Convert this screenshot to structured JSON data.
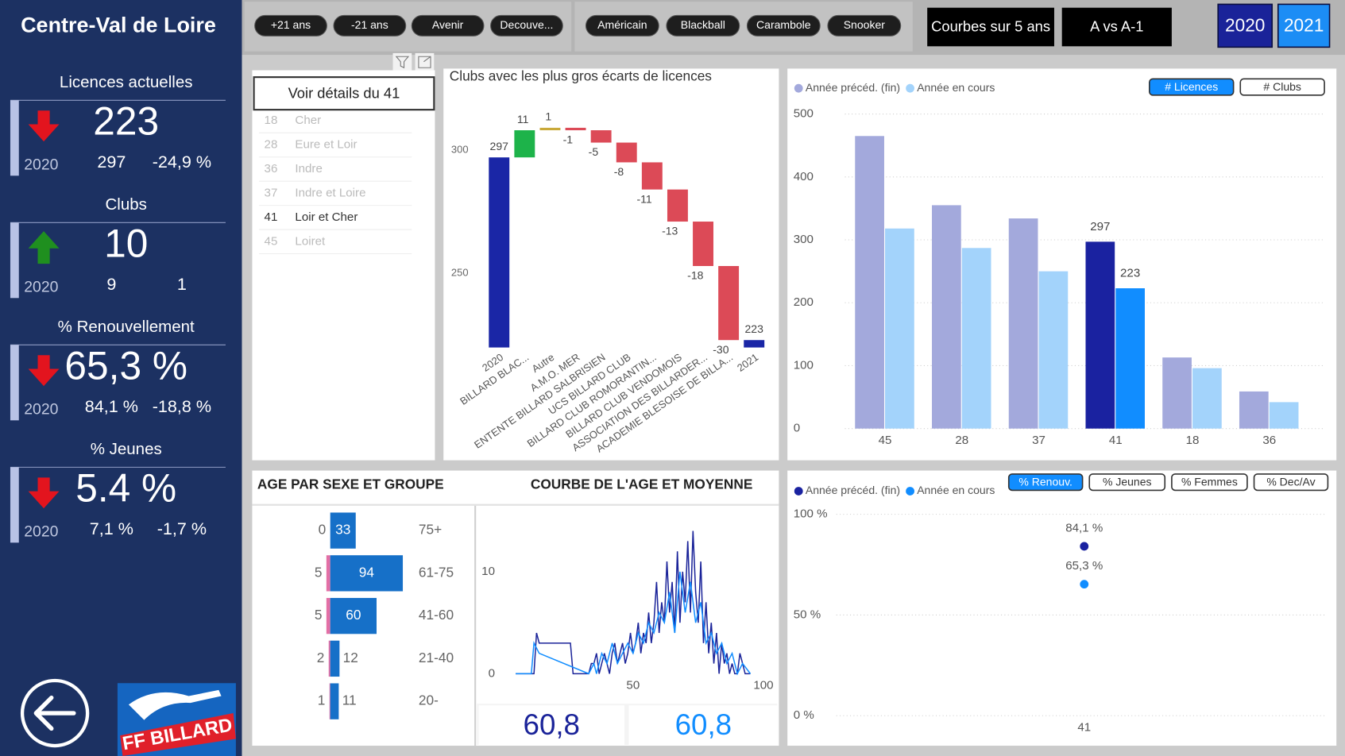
{
  "sidebar": {
    "title": "Centre-Val de Loire",
    "kpis": [
      {
        "title": "Licences actuelles",
        "value": "223",
        "trend": "down",
        "year": "2020",
        "previous": "297",
        "change": "-24,9 %"
      },
      {
        "title": "Clubs",
        "value": "10",
        "trend": "up",
        "year": "2020",
        "previous": "9",
        "change": "1"
      },
      {
        "title": "% Renouvellement",
        "value": "65,3 %",
        "trend": "down",
        "year": "2020",
        "previous": "84,1 %",
        "change": "-18,8 %"
      },
      {
        "title": "% Jeunes",
        "value": "5.4 %",
        "trend": "down",
        "year": "2020",
        "previous": "7,1 %",
        "change": "-1,7 %"
      }
    ],
    "logo": "FF BILLARD"
  },
  "filters": {
    "age_groups": [
      "+21 ans",
      "-21 ans",
      "Avenir",
      "Decouve..."
    ],
    "disciplines": [
      "Américain",
      "Blackball",
      "Carambole",
      "Snooker"
    ],
    "views": [
      "Courbes sur 5 ans",
      "A vs A-1"
    ],
    "years": [
      "2020",
      "2021"
    ]
  },
  "slicer": {
    "title": "Voir détails du 41",
    "items": [
      {
        "code": "18",
        "name": "Cher"
      },
      {
        "code": "28",
        "name": "Eure et Loir"
      },
      {
        "code": "36",
        "name": "Indre"
      },
      {
        "code": "37",
        "name": "Indre et Loire"
      },
      {
        "code": "41",
        "name": "Loir et Cher"
      },
      {
        "code": "45",
        "name": "Loiret"
      }
    ],
    "selected": 4
  },
  "chart_data": [
    {
      "type": "waterfall",
      "title": "Clubs avec les plus gros écarts de licences",
      "categories": [
        "2020",
        "BILLARD BLAC...",
        "Autre",
        "A.M.O. MER",
        "ENTENTE BILLARD SALBRISIEN",
        "UCS BILLARD CLUB",
        "BILLARD CLUB ROMORANTIN...",
        "BILLARD CLUB VENDOMOIS",
        "ASSOCIATION DES BILLARDER...",
        "ACADEMIE BLESOISE DE BILLA...",
        "2021"
      ],
      "values": [
        297,
        11,
        1,
        -1,
        -5,
        -8,
        -11,
        -13,
        -18,
        -30,
        223
      ],
      "total_indices": [
        0,
        10
      ],
      "colors": [
        "#1a26a6",
        "#1db34a",
        "#c9a93a",
        "#dc4a57",
        "#dc4a57",
        "#dc4a57",
        "#dc4a57",
        "#dc4a57",
        "#dc4a57",
        "#dc4a57",
        "#1a26a6"
      ],
      "ylim": [
        220,
        320
      ],
      "yticks": [
        250,
        300
      ]
    },
    {
      "type": "bar",
      "categories": [
        "45",
        "28",
        "37",
        "41",
        "18",
        "36"
      ],
      "series": [
        {
          "name": "Année précéd. (fin)",
          "color": "#a3a9dc",
          "highlight_color": "#1a22a0",
          "values": [
            465,
            355,
            334,
            297,
            113,
            59
          ]
        },
        {
          "name": "Année en cours",
          "color": "#a3d3fb",
          "highlight_color": "#118dff",
          "values": [
            318,
            287,
            250,
            223,
            96,
            42
          ]
        }
      ],
      "selected": 3,
      "toggles": [
        "# Licences",
        "# Clubs"
      ],
      "active_toggle": 0,
      "ylim": [
        0,
        500
      ],
      "yticks": [
        0,
        100,
        200,
        300,
        400,
        500
      ],
      "grid": true,
      "legend": "top-left"
    },
    {
      "type": "hbar",
      "title": "AGE PAR SEXE ET GROUPE",
      "categories": [
        "75+",
        "61-75",
        "41-60",
        "21-40",
        "20-"
      ],
      "series": [
        {
          "color": "#e36fa5",
          "values": [
            0,
            5,
            5,
            2,
            1
          ]
        },
        {
          "color": "#1670c8",
          "values": [
            33,
            94,
            60,
            12,
            11
          ]
        }
      ],
      "xlim": [
        0,
        100
      ]
    },
    {
      "type": "line",
      "title": "COURBE DE L'AGE ET MOYENNE",
      "series": [
        {
          "color": "#1a2399",
          "x": [
            5,
            6,
            7,
            8,
            9,
            10,
            11,
            12,
            13,
            14,
            15,
            16,
            17,
            18,
            19,
            20,
            21,
            22,
            23,
            24,
            25,
            26,
            27,
            28,
            29,
            30,
            31,
            32,
            33,
            34,
            35,
            36,
            37,
            38,
            39,
            40,
            41,
            42,
            43,
            44,
            45,
            46,
            47,
            48,
            49,
            50,
            51,
            52,
            53,
            54,
            55,
            56,
            57,
            58,
            59,
            60,
            61,
            62,
            63,
            64,
            65,
            66,
            67,
            68,
            69,
            70,
            71,
            72,
            73,
            74,
            75,
            76,
            77,
            78,
            79,
            80,
            81,
            82,
            83,
            84,
            85,
            86,
            87,
            88,
            89,
            90,
            91,
            92,
            93,
            94,
            95
          ],
          "values": [
            0,
            0,
            0,
            0,
            0,
            0,
            0,
            0,
            4,
            3,
            3,
            3,
            3,
            3,
            3,
            3,
            3,
            3,
            3,
            3,
            3,
            3,
            0,
            0,
            0,
            0,
            0,
            0,
            0,
            1,
            1,
            2,
            0,
            1,
            2,
            1,
            0,
            2,
            3,
            1,
            2,
            3,
            1,
            2,
            4,
            2,
            3,
            5,
            2,
            4,
            3,
            6,
            3,
            5,
            9,
            4,
            7,
            5,
            11,
            6,
            9,
            4,
            12,
            5,
            10,
            7,
            13,
            6,
            14,
            8,
            5,
            11,
            3,
            7,
            2,
            5,
            1,
            4,
            0,
            3,
            1,
            2,
            0,
            1,
            0,
            0,
            2,
            1,
            0,
            0,
            0
          ]
        },
        {
          "color": "#118dff",
          "x": [
            5,
            11,
            12,
            14,
            33,
            35,
            36,
            38,
            40,
            42,
            44,
            46,
            48,
            50,
            52,
            54,
            56,
            58,
            60,
            62,
            64,
            66,
            68,
            70,
            72,
            74,
            76,
            78,
            80,
            82,
            84,
            86,
            88,
            90,
            92,
            95
          ],
          "values": [
            0,
            0,
            3,
            2,
            0,
            1,
            0,
            2,
            1,
            3,
            1,
            2,
            3,
            2,
            4,
            3,
            5,
            4,
            6,
            5,
            8,
            4,
            10,
            6,
            9,
            5,
            7,
            3,
            4,
            2,
            3,
            1,
            2,
            0,
            1,
            0
          ]
        }
      ],
      "averages": [
        "60,8",
        "60,8"
      ],
      "xlim": [
        0,
        100
      ],
      "xticks": [
        50,
        100
      ],
      "ylim": [
        0,
        16
      ],
      "yticks": [
        0,
        10
      ]
    },
    {
      "type": "dot",
      "categories": [
        "41"
      ],
      "series": [
        {
          "name": "Année précéd. (fin)",
          "color": "#1a22a0",
          "values": [
            84.1
          ],
          "value_labels": [
            "84,1 %"
          ]
        },
        {
          "name": "Année en cours",
          "color": "#118dff",
          "values": [
            65.3
          ],
          "value_labels": [
            "65,3 %"
          ]
        }
      ],
      "toggles": [
        "% Renouv.",
        "% Jeunes",
        "% Femmes",
        "% Dec/Av"
      ],
      "active_toggle": 0,
      "ylim": [
        0,
        100
      ],
      "yticks": [
        {
          "value": 0,
          "label": "0 %"
        },
        {
          "value": 50,
          "label": "50 %"
        },
        {
          "value": 100,
          "label": "100 %"
        }
      ],
      "grid": true,
      "legend": "top-left"
    }
  ]
}
